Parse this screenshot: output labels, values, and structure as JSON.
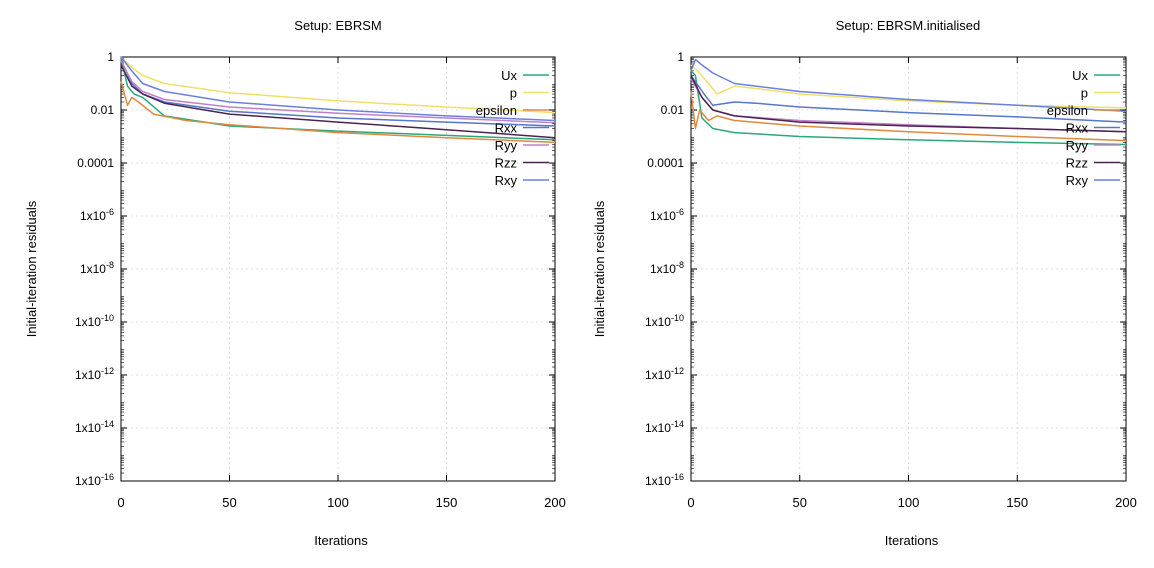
{
  "chart_data": [
    {
      "type": "line",
      "title": "Setup: EBRSM",
      "xlabel": "Iterations",
      "ylabel": "Initial-iteration residuals",
      "xlim": [
        0,
        200
      ],
      "ylim": [
        1e-16,
        1
      ],
      "yscale": "log",
      "grid": true,
      "legend_position": "top-right",
      "x_ticks": [
        0,
        50,
        100,
        150,
        200
      ],
      "y_ticks": [
        {
          "value": 1,
          "mant": "1",
          "exp": ""
        },
        {
          "value": 0.01,
          "mant": "0.01",
          "exp": ""
        },
        {
          "value": 0.0001,
          "mant": "0.0001",
          "exp": ""
        },
        {
          "value": 1e-06,
          "mant": "1x10",
          "exp": "-6"
        },
        {
          "value": 1e-08,
          "mant": "1x10",
          "exp": "-8"
        },
        {
          "value": 1e-10,
          "mant": "1x10",
          "exp": "-10"
        },
        {
          "value": 1e-12,
          "mant": "1x10",
          "exp": "-12"
        },
        {
          "value": 1e-14,
          "mant": "1x10",
          "exp": "-14"
        },
        {
          "value": 1e-16,
          "mant": "1x10",
          "exp": "-16"
        }
      ],
      "series": [
        {
          "name": "Ux",
          "color": "#2aa87a",
          "points": [
            [
              0,
              0.9
            ],
            [
              3,
              0.08
            ],
            [
              6,
              0.04
            ],
            [
              10,
              0.03
            ],
            [
              20,
              0.006
            ],
            [
              50,
              0.0025
            ],
            [
              100,
              0.0016
            ],
            [
              150,
              0.0011
            ],
            [
              200,
              0.00075
            ]
          ]
        },
        {
          "name": "p",
          "color": "#f0e06a",
          "points": [
            [
              0,
              1.0
            ],
            [
              5,
              0.4
            ],
            [
              10,
              0.2
            ],
            [
              20,
              0.1
            ],
            [
              50,
              0.045
            ],
            [
              100,
              0.022
            ],
            [
              150,
              0.013
            ],
            [
              200,
              0.008
            ]
          ]
        },
        {
          "name": "epsilon",
          "color": "#e08a40",
          "points": [
            [
              0,
              0.12
            ],
            [
              3,
              0.015
            ],
            [
              5,
              0.03
            ],
            [
              8,
              0.02
            ],
            [
              15,
              0.007
            ],
            [
              30,
              0.004
            ],
            [
              50,
              0.0028
            ],
            [
              100,
              0.0014
            ],
            [
              150,
              0.0009
            ],
            [
              200,
              0.0006
            ]
          ]
        },
        {
          "name": "Rxx",
          "color": "#5577cc",
          "points": [
            [
              0,
              0.8
            ],
            [
              5,
              0.1
            ],
            [
              10,
              0.04
            ],
            [
              20,
              0.02
            ],
            [
              50,
              0.009
            ],
            [
              100,
              0.005
            ],
            [
              150,
              0.0035
            ],
            [
              200,
              0.0025
            ]
          ]
        },
        {
          "name": "Ryy",
          "color": "#c080c8",
          "points": [
            [
              0,
              0.7
            ],
            [
              5,
              0.12
            ],
            [
              10,
              0.05
            ],
            [
              20,
              0.025
            ],
            [
              50,
              0.013
            ],
            [
              100,
              0.0075
            ],
            [
              150,
              0.005
            ],
            [
              200,
              0.0033
            ]
          ]
        },
        {
          "name": "Rzz",
          "color": "#4a2450",
          "points": [
            [
              0,
              0.5
            ],
            [
              5,
              0.08
            ],
            [
              10,
              0.04
            ],
            [
              20,
              0.018
            ],
            [
              50,
              0.007
            ],
            [
              100,
              0.0035
            ],
            [
              150,
              0.0018
            ],
            [
              200,
              0.0009
            ]
          ]
        },
        {
          "name": "Rxy",
          "color": "#6a80e0",
          "points": [
            [
              0,
              1.0
            ],
            [
              5,
              0.3
            ],
            [
              10,
              0.1
            ],
            [
              20,
              0.05
            ],
            [
              50,
              0.02
            ],
            [
              100,
              0.01
            ],
            [
              150,
              0.006
            ],
            [
              200,
              0.004
            ]
          ]
        }
      ]
    },
    {
      "type": "line",
      "title": "Setup: EBRSM.initialised",
      "xlabel": "Iterations",
      "ylabel": "Initial-iteration residuals",
      "xlim": [
        0,
        200
      ],
      "ylim": [
        1e-16,
        1
      ],
      "yscale": "log",
      "grid": true,
      "legend_position": "top-right",
      "x_ticks": [
        0,
        50,
        100,
        150,
        200
      ],
      "y_ticks": [
        {
          "value": 1,
          "mant": "1",
          "exp": ""
        },
        {
          "value": 0.01,
          "mant": "0.01",
          "exp": ""
        },
        {
          "value": 0.0001,
          "mant": "0.0001",
          "exp": ""
        },
        {
          "value": 1e-06,
          "mant": "1x10",
          "exp": "-6"
        },
        {
          "value": 1e-08,
          "mant": "1x10",
          "exp": "-8"
        },
        {
          "value": 1e-10,
          "mant": "1x10",
          "exp": "-10"
        },
        {
          "value": 1e-12,
          "mant": "1x10",
          "exp": "-12"
        },
        {
          "value": 1e-14,
          "mant": "1x10",
          "exp": "-14"
        },
        {
          "value": 1e-16,
          "mant": "1x10",
          "exp": "-16"
        }
      ],
      "series": [
        {
          "name": "Ux",
          "color": "#2aa87a",
          "points": [
            [
              0,
              0.3
            ],
            [
              2,
              0.2
            ],
            [
              5,
              0.005
            ],
            [
              10,
              0.002
            ],
            [
              20,
              0.0014
            ],
            [
              50,
              0.001
            ],
            [
              100,
              0.00075
            ],
            [
              150,
              0.0006
            ],
            [
              200,
              0.0005
            ]
          ]
        },
        {
          "name": "p",
          "color": "#f0e06a",
          "points": [
            [
              0,
              0.5
            ],
            [
              3,
              0.3
            ],
            [
              8,
              0.1
            ],
            [
              12,
              0.04
            ],
            [
              20,
              0.08
            ],
            [
              30,
              0.065
            ],
            [
              50,
              0.04
            ],
            [
              100,
              0.022
            ],
            [
              150,
              0.015
            ],
            [
              200,
              0.012
            ]
          ]
        },
        {
          "name": "epsilon",
          "color": "#e08a40",
          "points": [
            [
              0,
              0.05
            ],
            [
              2,
              0.002
            ],
            [
              4,
              0.01
            ],
            [
              8,
              0.004
            ],
            [
              12,
              0.006
            ],
            [
              20,
              0.004
            ],
            [
              50,
              0.0025
            ],
            [
              100,
              0.0015
            ],
            [
              150,
              0.001
            ],
            [
              200,
              0.0007
            ]
          ]
        },
        {
          "name": "Rxx",
          "color": "#5577cc",
          "points": [
            [
              0,
              0.2
            ],
            [
              3,
              0.09
            ],
            [
              6,
              0.04
            ],
            [
              10,
              0.015
            ],
            [
              20,
              0.02
            ],
            [
              30,
              0.018
            ],
            [
              50,
              0.013
            ],
            [
              100,
              0.008
            ],
            [
              150,
              0.0055
            ],
            [
              200,
              0.0035
            ]
          ]
        },
        {
          "name": "Ryy",
          "color": "#c080c8",
          "points": [
            [
              0,
              0.15
            ],
            [
              5,
              0.03
            ],
            [
              10,
              0.01
            ],
            [
              20,
              0.006
            ],
            [
              50,
              0.004
            ],
            [
              100,
              0.0028
            ],
            [
              150,
              0.002
            ],
            [
              200,
              0.0015
            ]
          ]
        },
        {
          "name": "Rzz",
          "color": "#4a2450",
          "points": [
            [
              0,
              0.2
            ],
            [
              5,
              0.03
            ],
            [
              10,
              0.01
            ],
            [
              20,
              0.006
            ],
            [
              50,
              0.0035
            ],
            [
              100,
              0.0025
            ],
            [
              150,
              0.002
            ],
            [
              200,
              0.0015
            ]
          ]
        },
        {
          "name": "Rxy",
          "color": "#6a80e0",
          "points": [
            [
              0,
              0.3
            ],
            [
              2,
              0.8
            ],
            [
              5,
              0.5
            ],
            [
              10,
              0.25
            ],
            [
              20,
              0.1
            ],
            [
              50,
              0.05
            ],
            [
              100,
              0.025
            ],
            [
              150,
              0.015
            ],
            [
              200,
              0.009
            ]
          ]
        }
      ]
    }
  ]
}
